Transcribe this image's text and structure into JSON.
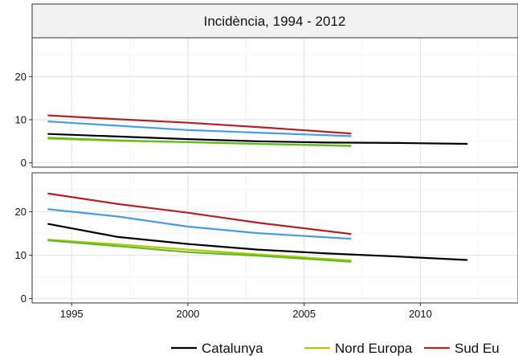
{
  "chart_data": {
    "type": "line",
    "title": "Incidència, 1994 - 2012",
    "xlabel": "",
    "ylabel": "",
    "x_ticks": [
      1995,
      2000,
      2005,
      2010
    ],
    "xlim": [
      1993.3,
      2014.2
    ],
    "grid": true,
    "legend_position": "bottom",
    "panels": [
      {
        "ylim": [
          -1,
          29
        ],
        "y_ticks": [
          0,
          10,
          20
        ],
        "series": [
          {
            "name": "Catalunya",
            "color": "#000000",
            "x": [
              1994,
              1997,
              2000,
              2003,
              2006,
              2009,
              2012
            ],
            "y": [
              6.7,
              6.1,
              5.5,
              5.0,
              4.7,
              4.6,
              4.4
            ]
          },
          {
            "name": "Nord Europa",
            "color": "#b5c800",
            "x": [
              1994,
              1997,
              2000,
              2003,
              2007
            ],
            "y": [
              5.6,
              5.1,
              4.8,
              4.4,
              4.0
            ]
          },
          {
            "name": "Sud Europa",
            "color": "#b22222",
            "x": [
              1994,
              1997,
              2000,
              2003,
              2007
            ],
            "y": [
              11.0,
              10.1,
              9.3,
              8.3,
              6.8
            ]
          },
          {
            "name": "",
            "color": "#4a9be0",
            "x": [
              1994,
              1997,
              2000,
              2003,
              2007
            ],
            "y": [
              9.6,
              8.6,
              7.6,
              7.0,
              6.2
            ]
          },
          {
            "name": "",
            "color": "#5aba2a",
            "x": [
              1994,
              1997,
              2000,
              2003,
              2007
            ],
            "y": [
              5.8,
              5.2,
              4.8,
              4.4,
              3.9
            ]
          }
        ]
      },
      {
        "ylim": [
          -1,
          29
        ],
        "y_ticks": [
          0,
          10,
          20
        ],
        "series": [
          {
            "name": "Catalunya",
            "color": "#000000",
            "x": [
              1994,
              1997,
              2000,
              2003,
              2006,
              2009,
              2012
            ],
            "y": [
              17.2,
              14.2,
              12.6,
              11.3,
              10.4,
              9.7,
              8.9
            ]
          },
          {
            "name": "Nord Europa",
            "color": "#b5c800",
            "x": [
              1994,
              1997,
              2000,
              2003,
              2007
            ],
            "y": [
              13.6,
              12.5,
              11.3,
              10.2,
              8.8
            ]
          },
          {
            "name": "Sud Europa",
            "color": "#b22222",
            "x": [
              1994,
              1997,
              2000,
              2003,
              2007
            ],
            "y": [
              24.2,
              21.8,
              19.8,
              17.5,
              14.9
            ]
          },
          {
            "name": "",
            "color": "#4a9be0",
            "x": [
              1994,
              1997,
              2000,
              2003,
              2007
            ],
            "y": [
              20.6,
              18.9,
              16.6,
              15.1,
              13.8
            ]
          },
          {
            "name": "",
            "color": "#5aba2a",
            "x": [
              1994,
              1997,
              2000,
              2003,
              2007
            ],
            "y": [
              13.4,
              12.1,
              10.7,
              9.9,
              8.5
            ]
          }
        ]
      }
    ],
    "legend": [
      {
        "label": "Catalunya",
        "color": "#000000"
      },
      {
        "label": "Nord Europa",
        "color": "#b5c800"
      },
      {
        "label": "Sud Eu",
        "color": "#b22222"
      }
    ]
  }
}
